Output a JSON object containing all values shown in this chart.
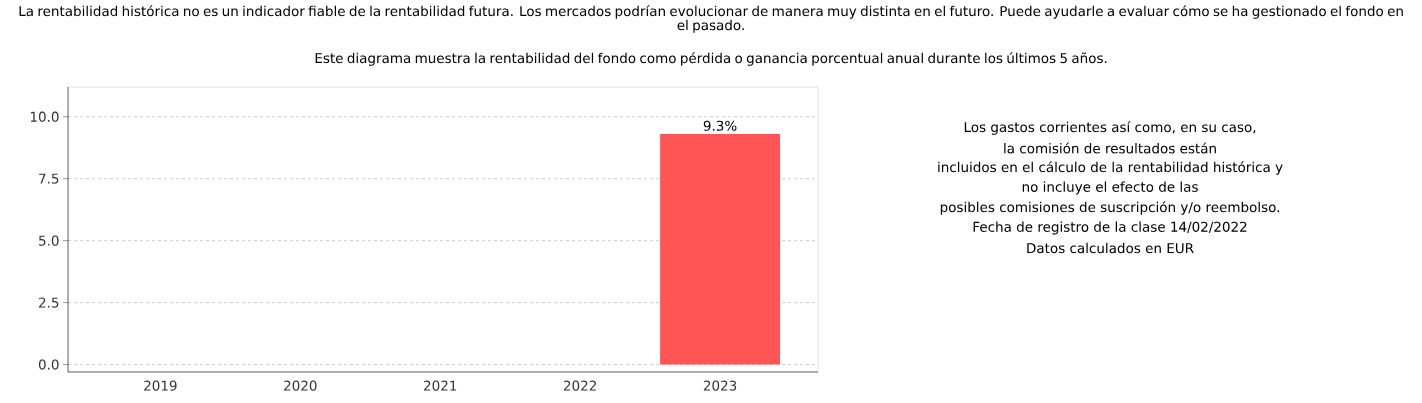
{
  "chart_data": {
    "type": "bar",
    "title": "La rentabilidad histórica no es un indicador fiable de la rentabilidad futura. Los mercados podrían evolucionar de manera muy distinta en el futuro. Puede ayudarle a evaluar cómo se ha gestionado el fondo en el pasado.",
    "subtitle": "Este diagrama muestra la rentabilidad del fondo como pérdida o ganancia porcentual anual durante los últimos 5 años.",
    "categories": [
      "2019",
      "2020",
      "2021",
      "2022",
      "2023"
    ],
    "values": [
      null,
      null,
      null,
      null,
      9.3
    ],
    "value_labels": [
      null,
      null,
      null,
      null,
      "9.3%"
    ],
    "color": "#ff5555",
    "ylim": [
      -0.3,
      11.2
    ],
    "yticks": [
      {
        "value": 0,
        "label": "0.0"
      },
      {
        "value": 2.5,
        "label": "2.5"
      },
      {
        "value": 5,
        "label": "5.0"
      },
      {
        "value": 7.5,
        "label": "7.5"
      },
      {
        "value": 10,
        "label": "10.0"
      }
    ],
    "grid": "y",
    "annotations": [
      "Los gastos corrientes así como, en su caso,",
      "la comisión de resultados están",
      "incluidos en el cálculo de la rentabilidad histórica y",
      "no incluye el efecto de las",
      "posibles comisiones de suscripción y/o reembolso.",
      "Fecha de registro de la clase 14/02/2022",
      "Datos calculados en EUR"
    ]
  }
}
